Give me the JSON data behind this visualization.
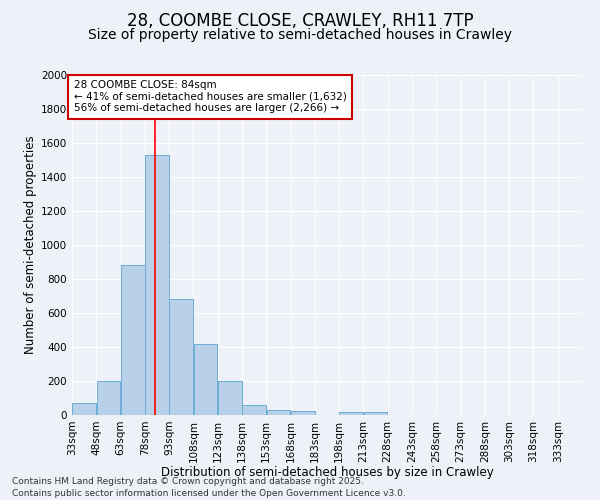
{
  "title_line1": "28, COOMBE CLOSE, CRAWLEY, RH11 7TP",
  "title_line2": "Size of property relative to semi-detached houses in Crawley",
  "xlabel": "Distribution of semi-detached houses by size in Crawley",
  "ylabel": "Number of semi-detached properties",
  "bar_left_edges": [
    33,
    48,
    63,
    78,
    93,
    108,
    123,
    138,
    153,
    168,
    183,
    198,
    213,
    228,
    243,
    258,
    273,
    288,
    303,
    318
  ],
  "bar_heights": [
    70,
    200,
    880,
    1530,
    680,
    420,
    200,
    60,
    30,
    25,
    0,
    20,
    15,
    0,
    0,
    0,
    0,
    0,
    0,
    0
  ],
  "bin_width": 15,
  "bar_color": "#b8d0e8",
  "bar_edge_color": "#6aaed6",
  "red_line_x": 84,
  "ylim": [
    0,
    2000
  ],
  "yticks": [
    0,
    200,
    400,
    600,
    800,
    1000,
    1200,
    1400,
    1600,
    1800,
    2000
  ],
  "xtick_labels": [
    "33sqm",
    "48sqm",
    "63sqm",
    "78sqm",
    "93sqm",
    "108sqm",
    "123sqm",
    "138sqm",
    "153sqm",
    "168sqm",
    "183sqm",
    "198sqm",
    "213sqm",
    "228sqm",
    "243sqm",
    "258sqm",
    "273sqm",
    "288sqm",
    "303sqm",
    "318sqm",
    "333sqm"
  ],
  "annotation_title": "28 COOMBE CLOSE: 84sqm",
  "annotation_line1": "← 41% of semi-detached houses are smaller (1,632)",
  "annotation_line2": "56% of semi-detached houses are larger (2,266) →",
  "annotation_box_color": "#ffffff",
  "annotation_border_color": "#cc0000",
  "footer_line1": "Contains HM Land Registry data © Crown copyright and database right 2025.",
  "footer_line2": "Contains public sector information licensed under the Open Government Licence v3.0.",
  "background_color": "#eef2f8",
  "grid_color": "#ffffff",
  "title_fontsize": 12,
  "subtitle_fontsize": 10,
  "axis_label_fontsize": 8.5,
  "tick_fontsize": 7.5,
  "annotation_fontsize": 7.5,
  "footer_fontsize": 6.5
}
